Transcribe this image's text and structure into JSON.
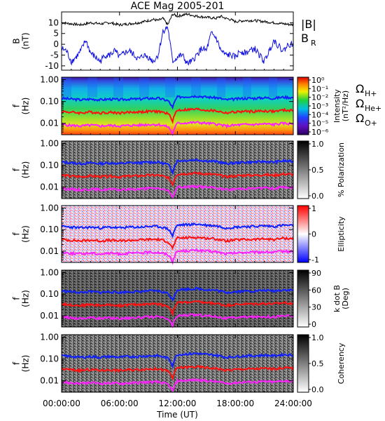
{
  "chart_data": {
    "type": "line",
    "title": "ACE Mag 2005-201",
    "xlabel": "Time (UT)",
    "xticks": [
      "00:00:00",
      "06:00:00",
      "12:00:00",
      "18:00:00",
      "24:00:00"
    ],
    "xlim": [
      0,
      24
    ],
    "colors": {
      "bmag": "#000000",
      "br": "#1010e0",
      "h": "#1020ff",
      "he": "#ff1010",
      "o": "#ff20ff"
    },
    "top_panel": {
      "ylabel": "B\n(nT)",
      "ylim": [
        -12,
        15
      ],
      "yticks": [
        "10",
        "5",
        "0",
        "-5",
        "-10"
      ],
      "ytick_values": [
        10,
        5,
        0,
        -5,
        -10
      ],
      "legend": {
        "bmag": "|B|",
        "br_main": "B",
        "br_sub": "R"
      },
      "series": [
        {
          "name": "|B|",
          "x": [
            0,
            1,
            2,
            3,
            4,
            5,
            6,
            7,
            8,
            9,
            9.5,
            10,
            10.5,
            11,
            11.5,
            12,
            13,
            14,
            15,
            16,
            16.5,
            17,
            17.5,
            18,
            19,
            20,
            21,
            22,
            23,
            24
          ],
          "values": [
            10,
            9.5,
            9,
            10,
            9.5,
            10,
            9,
            9.5,
            10,
            11,
            11.5,
            11,
            12,
            9,
            14,
            13,
            14,
            13,
            12.5,
            12,
            13,
            12,
            11.5,
            10.5,
            11,
            11,
            10.5,
            10,
            9.5,
            9
          ]
        },
        {
          "name": "B_R",
          "x": [
            0,
            0.5,
            1,
            1.5,
            2,
            2.5,
            3,
            3.5,
            4,
            4.5,
            5,
            5.5,
            6,
            6.5,
            7,
            7.5,
            8,
            8.5,
            9,
            9.5,
            10,
            10.5,
            11,
            11.5,
            12,
            12.5,
            13,
            13.5,
            14,
            14.5,
            15,
            15.5,
            16,
            16.5,
            17,
            17.5,
            18,
            18.5,
            19,
            19.5,
            20,
            20.5,
            21,
            21.5,
            22,
            22.5,
            23,
            23.5,
            24
          ],
          "values": [
            -2,
            -3,
            -8,
            -6,
            -3,
            2,
            -4,
            -6,
            -8,
            -5,
            -5,
            -3,
            -6,
            -4,
            -3,
            -5,
            -7,
            -5,
            -6,
            -8,
            -5,
            6,
            8,
            -8,
            -6,
            -5,
            -9,
            -8,
            -5,
            -2,
            -3,
            5,
            3,
            -3,
            -5,
            -5,
            -6,
            -3,
            -4,
            -3,
            -2,
            -5,
            -8,
            -3,
            2,
            -1,
            -3,
            0,
            0
          ]
        }
      ]
    },
    "panels": [
      {
        "id": "intensity",
        "ylabel": "f\n(Hz)",
        "colorbar_label": "Intensity\n(nT²/Hz)",
        "colorbar_ticks": [
          "10⁰",
          "10⁻¹",
          "10⁻²",
          "10⁻³",
          "10⁻⁴",
          "10⁻⁵",
          "10⁻⁶"
        ],
        "colormap": "rainbow"
      },
      {
        "id": "polarization",
        "ylabel": "f\n(Hz)",
        "colorbar_label": "% Polarization",
        "colorbar_ticks": [
          "1.0",
          "0.5",
          "0.0"
        ],
        "colormap": "gray"
      },
      {
        "id": "ellipticity",
        "ylabel": "f\n(Hz)",
        "colorbar_label": "Ellipticity",
        "colorbar_ticks": [
          "1",
          "0",
          "-1"
        ],
        "colormap": "bwr"
      },
      {
        "id": "kdotb",
        "ylabel": "f\n(Hz)",
        "colorbar_label": "k dot B\n(Deg)",
        "colorbar_ticks": [
          "90",
          "60",
          "30",
          "0"
        ],
        "colormap": "gray"
      },
      {
        "id": "coherency",
        "ylabel": "f\n(Hz)",
        "colorbar_label": "Coherency",
        "colorbar_ticks": [
          "1.0",
          "0.5",
          "0.0"
        ],
        "colormap": "gray"
      }
    ],
    "freq_axis": {
      "scale": "log",
      "ylim": [
        0.003,
        1.3
      ],
      "yticks": [
        "1.00",
        "0.10",
        "0.01"
      ],
      "ytick_values": [
        1.0,
        0.1,
        0.01
      ]
    },
    "gyro_lines": [
      {
        "name": "Ω_H+",
        "label_main": "Ω",
        "label_sub": "H+",
        "x": [
          0,
          1,
          2,
          3,
          4,
          5,
          6,
          7,
          8,
          9,
          10,
          11,
          11.5,
          12,
          13,
          14,
          15,
          16,
          17,
          18,
          19,
          20,
          21,
          22,
          23,
          24
        ],
        "values": [
          0.14,
          0.13,
          0.12,
          0.13,
          0.12,
          0.13,
          0.12,
          0.13,
          0.13,
          0.14,
          0.14,
          0.11,
          0.05,
          0.16,
          0.17,
          0.18,
          0.16,
          0.15,
          0.12,
          0.13,
          0.14,
          0.14,
          0.15,
          0.14,
          0.16,
          0.15
        ]
      },
      {
        "name": "Ω_He+",
        "label_main": "Ω",
        "label_sub": "He+",
        "x": [
          0,
          1,
          2,
          3,
          4,
          5,
          6,
          7,
          8,
          9,
          10,
          11,
          11.5,
          12,
          13,
          14,
          15,
          16,
          17,
          18,
          19,
          20,
          21,
          22,
          23,
          24
        ],
        "values": [
          0.035,
          0.032,
          0.03,
          0.033,
          0.03,
          0.032,
          0.03,
          0.032,
          0.033,
          0.035,
          0.035,
          0.028,
          0.013,
          0.04,
          0.042,
          0.044,
          0.04,
          0.037,
          0.03,
          0.033,
          0.035,
          0.035,
          0.037,
          0.035,
          0.04,
          0.038
        ]
      },
      {
        "name": "Ω_O+",
        "label_main": "Ω",
        "label_sub": "O+",
        "x": [
          0,
          1,
          2,
          3,
          4,
          5,
          6,
          7,
          8,
          9,
          10,
          11,
          11.5,
          12,
          13,
          14,
          15,
          16,
          17,
          18,
          19,
          20,
          21,
          22,
          23,
          24
        ],
        "values": [
          0.0088,
          0.008,
          0.0075,
          0.0082,
          0.0075,
          0.008,
          0.0075,
          0.008,
          0.0082,
          0.0088,
          0.0088,
          0.007,
          0.0033,
          0.01,
          0.0105,
          0.011,
          0.01,
          0.0093,
          0.0075,
          0.0082,
          0.0088,
          0.0088,
          0.0093,
          0.0088,
          0.01,
          0.0095
        ]
      }
    ]
  }
}
